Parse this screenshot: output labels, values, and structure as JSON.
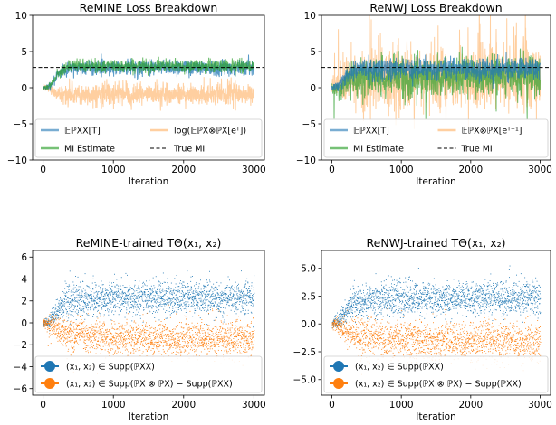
{
  "chart_data": [
    {
      "type": "line",
      "title": "ReMINE Loss Breakdown",
      "xlabel": "Iteration",
      "ylabel": "",
      "xlim": [
        -150,
        3150
      ],
      "ylim": [
        -10,
        10
      ],
      "xticks": [
        0,
        1000,
        2000,
        3000
      ],
      "xtick_labels": [
        "0",
        "1000",
        "2000",
        "3000"
      ],
      "yticks": [
        -10,
        -5,
        0,
        5,
        10
      ],
      "ytick_labels": [
        "−10",
        "−5",
        "0",
        "5",
        "10"
      ],
      "legend_position": "bottom",
      "legend_columns": 2,
      "series": [
        {
          "name": "𝔼ℙXX[T]",
          "color": "#1f77b4",
          "values": [
            {
              "x": 0,
              "y": 0.0
            },
            {
              "x": 100,
              "y": 0.2
            },
            {
              "x": 200,
              "y": 1.5
            },
            {
              "x": 300,
              "y": 2.5
            },
            {
              "x": 500,
              "y": 2.8
            },
            {
              "x": 1000,
              "y": 2.8
            },
            {
              "x": 2000,
              "y": 2.8
            },
            {
              "x": 3000,
              "y": 2.8
            }
          ]
        },
        {
          "name": "log(𝔼ℙX⊗ℙX[eᵀ])",
          "color": "#ffbb78",
          "values": [
            {
              "x": 0,
              "y": 0.0
            },
            {
              "x": 100,
              "y": -0.2
            },
            {
              "x": 200,
              "y": -0.8
            },
            {
              "x": 400,
              "y": -0.9
            },
            {
              "x": 1000,
              "y": -0.9
            },
            {
              "x": 2000,
              "y": -0.9
            },
            {
              "x": 3000,
              "y": -0.9
            }
          ]
        },
        {
          "name": "MI Estimate",
          "color": "#2ca02c",
          "values": [
            {
              "x": 0,
              "y": 0.0
            },
            {
              "x": 100,
              "y": 0.3
            },
            {
              "x": 200,
              "y": 1.8
            },
            {
              "x": 300,
              "y": 2.8
            },
            {
              "x": 500,
              "y": 3.0
            },
            {
              "x": 1000,
              "y": 3.0
            },
            {
              "x": 2000,
              "y": 3.0
            },
            {
              "x": 3000,
              "y": 3.0
            }
          ]
        },
        {
          "name": "True MI",
          "color": "#000000",
          "style": "dashed",
          "values": [
            {
              "x": -150,
              "y": 2.8
            },
            {
              "x": 3150,
              "y": 2.8
            }
          ]
        }
      ]
    },
    {
      "type": "line",
      "title": "ReNWJ Loss Breakdown",
      "xlabel": "Iteration",
      "ylabel": "",
      "xlim": [
        -150,
        3150
      ],
      "ylim": [
        -10,
        10
      ],
      "xticks": [
        0,
        1000,
        2000,
        3000
      ],
      "xtick_labels": [
        "0",
        "1000",
        "2000",
        "3000"
      ],
      "yticks": [
        -10,
        -5,
        0,
        5,
        10
      ],
      "ytick_labels": [
        "−10",
        "−5",
        "0",
        "5",
        "10"
      ],
      "legend_position": "bottom",
      "legend_columns": 2,
      "series": [
        {
          "name": "𝔼ℙXX[T]",
          "color": "#1f77b4",
          "values": [
            {
              "x": 0,
              "y": 0.0
            },
            {
              "x": 100,
              "y": 0.3
            },
            {
              "x": 200,
              "y": 1.6
            },
            {
              "x": 300,
              "y": 2.4
            },
            {
              "x": 500,
              "y": 2.6
            },
            {
              "x": 1000,
              "y": 2.6
            },
            {
              "x": 2000,
              "y": 2.6
            },
            {
              "x": 3000,
              "y": 2.6
            }
          ]
        },
        {
          "name": "𝔼ℙX⊗ℙX[eᵀ⁻¹]",
          "color": "#ffbb78",
          "values": [
            {
              "x": 0,
              "y": 0.0
            },
            {
              "x": 200,
              "y": 0.8
            },
            {
              "x": 400,
              "y": 1.2
            },
            {
              "x": 1000,
              "y": 1.2
            },
            {
              "x": 2000,
              "y": 1.2
            },
            {
              "x": 3000,
              "y": 1.2
            }
          ]
        },
        {
          "name": "MI Estimate",
          "color": "#2ca02c",
          "values": [
            {
              "x": 0,
              "y": 0.0
            },
            {
              "x": 100,
              "y": -0.2
            },
            {
              "x": 200,
              "y": 0.8
            },
            {
              "x": 400,
              "y": 1.5
            },
            {
              "x": 1000,
              "y": 1.5
            },
            {
              "x": 2000,
              "y": 1.5
            },
            {
              "x": 3000,
              "y": 1.5
            }
          ]
        },
        {
          "name": "True MI",
          "color": "#000000",
          "style": "dashed",
          "values": [
            {
              "x": -150,
              "y": 2.8
            },
            {
              "x": 3150,
              "y": 2.8
            }
          ]
        }
      ]
    },
    {
      "type": "scatter",
      "title": "ReMINE-trained TΘ(x₁, x₂)",
      "xlabel": "Iteration",
      "ylabel": "",
      "xlim": [
        -150,
        3150
      ],
      "ylim": [
        -6.6,
        6.6
      ],
      "xticks": [
        0,
        1000,
        2000,
        3000
      ],
      "xtick_labels": [
        "0",
        "1000",
        "2000",
        "3000"
      ],
      "yticks": [
        -6,
        -4,
        -2,
        0,
        2,
        4,
        6
      ],
      "ytick_labels": [
        "−6",
        "−4",
        "−2",
        "0",
        "2",
        "4",
        "6"
      ],
      "legend_position": "lower-left",
      "series": [
        {
          "name": "(x₁, x₂) ∈ Supp(ℙXX)",
          "color": "#1f77b4",
          "values": [
            {
              "x": 0,
              "y": 0.0
            },
            {
              "x": 100,
              "y": 0.2
            },
            {
              "x": 200,
              "y": 1.0
            },
            {
              "x": 300,
              "y": 1.8
            },
            {
              "x": 500,
              "y": 2.2
            },
            {
              "x": 1000,
              "y": 2.3
            },
            {
              "x": 2000,
              "y": 2.3
            },
            {
              "x": 3000,
              "y": 2.3
            }
          ]
        },
        {
          "name": "(x₁, x₂) ∈ Supp(ℙX ⊗ ℙX) − Supp(ℙXX)",
          "color": "#ff7f0e",
          "values": [
            {
              "x": 0,
              "y": 0.0
            },
            {
              "x": 100,
              "y": -0.1
            },
            {
              "x": 200,
              "y": -0.5
            },
            {
              "x": 400,
              "y": -1.1
            },
            {
              "x": 1000,
              "y": -1.3
            },
            {
              "x": 2000,
              "y": -1.4
            },
            {
              "x": 3000,
              "y": -1.4
            }
          ]
        }
      ]
    },
    {
      "type": "scatter",
      "title": "ReNWJ-trained TΘ(x₁, x₂)",
      "xlabel": "Iteration",
      "ylabel": "",
      "xlim": [
        -150,
        3150
      ],
      "ylim": [
        -6.4,
        6.6
      ],
      "xticks": [
        0,
        1000,
        2000,
        3000
      ],
      "xtick_labels": [
        "0",
        "1000",
        "2000",
        "3000"
      ],
      "yticks": [
        -5,
        -2.5,
        0,
        2.5,
        5
      ],
      "ytick_labels": [
        "−5.0",
        "−2.5",
        "0.0",
        "2.5",
        "5.0"
      ],
      "legend_position": "lower-left",
      "series": [
        {
          "name": "(x₁, x₂) ∈ Supp(ℙXX)",
          "color": "#1f77b4",
          "values": [
            {
              "x": 0,
              "y": 0.0
            },
            {
              "x": 100,
              "y": 0.3
            },
            {
              "x": 200,
              "y": 1.2
            },
            {
              "x": 300,
              "y": 1.9
            },
            {
              "x": 500,
              "y": 2.2
            },
            {
              "x": 1000,
              "y": 2.3
            },
            {
              "x": 2000,
              "y": 2.4
            },
            {
              "x": 3000,
              "y": 2.4
            }
          ]
        },
        {
          "name": "(x₁, x₂) ∈ Supp(ℙX ⊗ ℙX) − Supp(ℙXX)",
          "color": "#ff7f0e",
          "values": [
            {
              "x": 0,
              "y": 0.0
            },
            {
              "x": 100,
              "y": -0.1
            },
            {
              "x": 200,
              "y": -0.6
            },
            {
              "x": 400,
              "y": -1.2
            },
            {
              "x": 1000,
              "y": -1.4
            },
            {
              "x": 2000,
              "y": -1.5
            },
            {
              "x": 3000,
              "y": -1.5
            }
          ]
        }
      ]
    }
  ]
}
